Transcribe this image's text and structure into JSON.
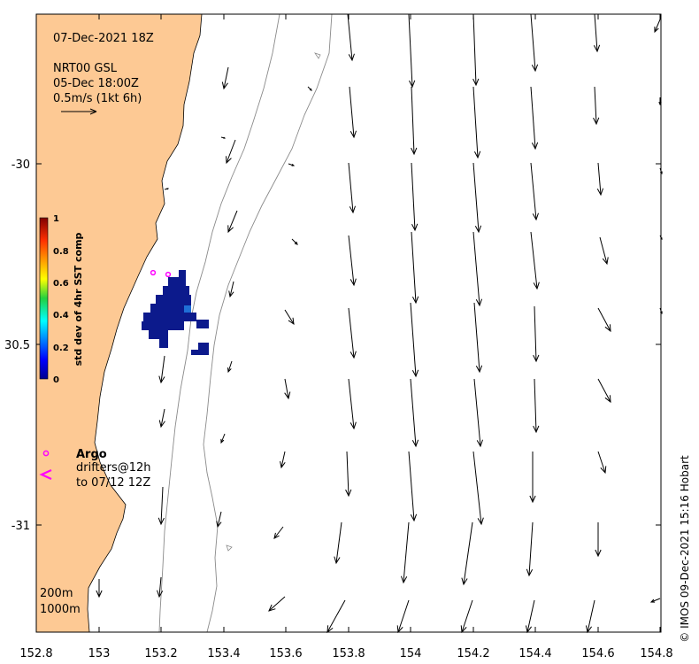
{
  "map": {
    "date_label": "07-Dec-2021 18Z",
    "product_label": "NRT00 GSL",
    "product_date": "05-Dec 18:00Z",
    "scale_label": "0.5m/s (1kt 6h)",
    "credit": "© IMOS 09-Dec-2021 15:16 Hobart",
    "x_ticks": [
      "152.8",
      "153",
      "153.2",
      "153.4",
      "153.6",
      "153.8",
      "154",
      "154.2",
      "154.4",
      "154.6",
      "154.8"
    ],
    "y_ticks": [
      "-30",
      "30.5",
      "-31"
    ],
    "colorbar": {
      "label": "std dev of 4hr SST comp",
      "ticks": [
        "1",
        "0.8",
        "0.6",
        "0.4",
        "0.2",
        "0"
      ]
    },
    "legend": {
      "argo_label": "Argo",
      "drifters_label": "drifters@12h",
      "drifters_until": "to 07/12 12Z"
    },
    "isobath_labels": [
      "200m",
      "1000m"
    ],
    "colors": {
      "land": "#fdc994",
      "argo": "#ff00ff",
      "sst_blob": "#0c1a8c"
    }
  }
}
